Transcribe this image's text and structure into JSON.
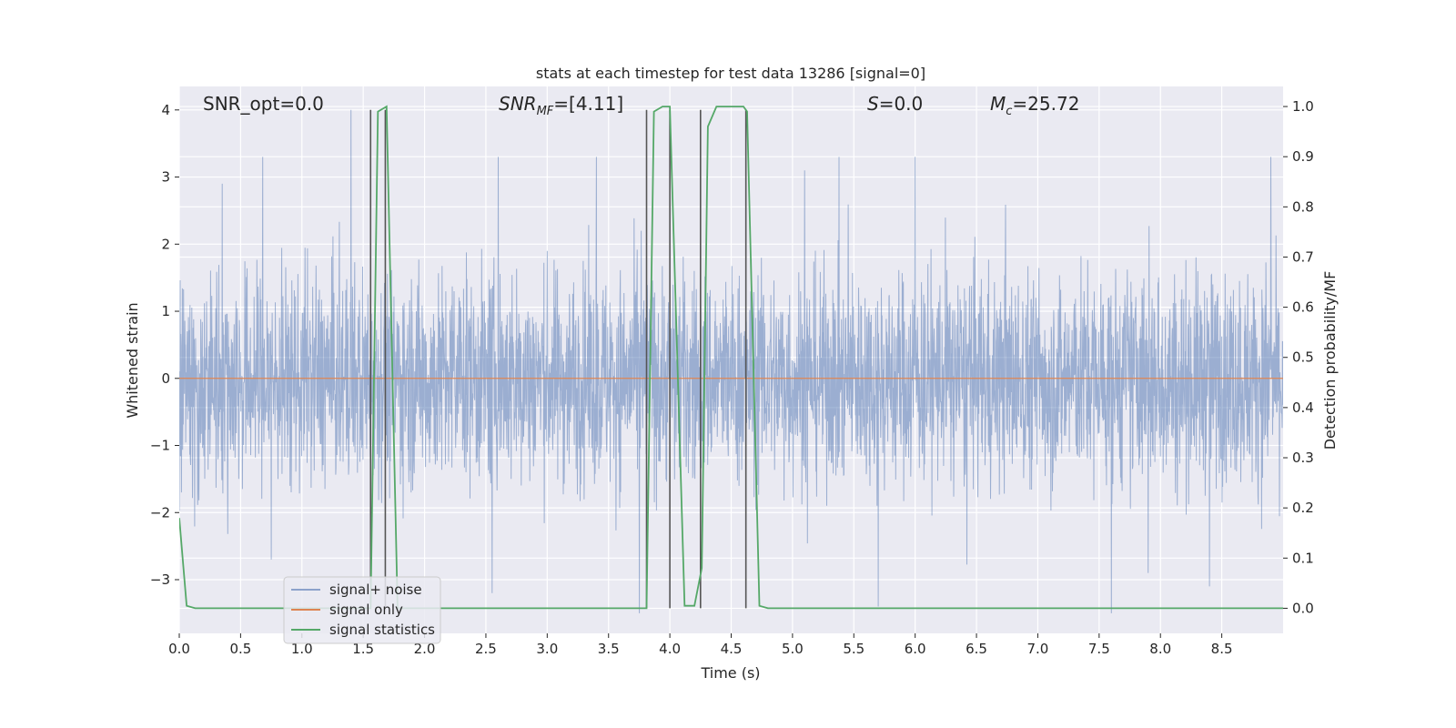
{
  "chart_data": {
    "type": "line",
    "title": "stats at each timestep for test data 13286 [signal=0]",
    "xlabel": "Time (s)",
    "ylabel": "Whitened strain",
    "ylabel_right": "Detection probability/MF",
    "xlim": [
      0,
      9
    ],
    "ylim": [
      -3.8,
      4.35
    ],
    "ylim_right": [
      -0.05,
      1.04
    ],
    "x_ticks": [
      "0.0",
      "0.5",
      "1.0",
      "1.5",
      "2.0",
      "2.5",
      "3.0",
      "3.5",
      "4.0",
      "4.5",
      "5.0",
      "5.5",
      "6.0",
      "6.5",
      "7.0",
      "7.5",
      "8.0",
      "8.5"
    ],
    "y_ticks": [
      "4",
      "3",
      "2",
      "1",
      "0",
      "−1",
      "−2",
      "−3"
    ],
    "y_ticks_right": [
      "1.0",
      "0.9",
      "0.8",
      "0.7",
      "0.6",
      "0.5",
      "0.4",
      "0.3",
      "0.2",
      "0.1",
      "0.0"
    ],
    "grid": true,
    "legend_position": "lower-left",
    "annotations": {
      "snr_opt": "SNR_opt=0.0",
      "snr_mf_main": "SNR",
      "snr_mf_sub": "MF",
      "snr_mf_value": "=[4.11]",
      "s_var": "S",
      "s_value": "=0.0",
      "mc_main": "M",
      "mc_sub": "c",
      "mc_value": "=25.72"
    },
    "series": [
      {
        "name": "signal+ noise",
        "color": "#4c72b0",
        "envelope": "noise amplitude approx ±1.2 whitened strain with peaks to ±4",
        "spikes": [
          [
            0.35,
            2.9
          ],
          [
            0.68,
            3.3
          ],
          [
            1.4,
            4.0
          ],
          [
            2.6,
            3.3
          ],
          [
            3.4,
            3.3
          ],
          [
            5.1,
            3.1
          ],
          [
            6.0,
            3.3
          ],
          [
            7.6,
            3.3
          ],
          [
            8.9,
            3.3
          ],
          [
            0.75,
            -2.7
          ],
          [
            2.55,
            -3.2
          ],
          [
            3.75,
            -3.5
          ],
          [
            5.7,
            -3.4
          ],
          [
            7.6,
            -3.5
          ],
          [
            7.9,
            -2.9
          ],
          [
            8.4,
            -3.1
          ]
        ]
      },
      {
        "name": "signal only",
        "color": "#dd8452",
        "x": [
          0,
          9
        ],
        "y": [
          0,
          0
        ]
      },
      {
        "name": "signal statistics",
        "color": "#55a868",
        "axis": "right",
        "x": [
          0,
          0.06,
          0.13,
          1.56,
          1.62,
          1.69,
          1.78,
          1.81,
          3.81,
          3.87,
          3.94,
          4.0,
          4.12,
          4.2,
          4.26,
          4.31,
          4.38,
          4.6,
          4.63,
          4.73,
          4.8,
          9.0
        ],
        "y": [
          0.18,
          0.005,
          0.0,
          0.0,
          0.99,
          1.0,
          0.0,
          0.0,
          0.0,
          0.99,
          1.0,
          1.0,
          0.005,
          0.005,
          0.08,
          0.96,
          1.0,
          1.0,
          0.99,
          0.005,
          0.0,
          0.0
        ]
      }
    ],
    "vertical_lines": [
      1.56,
      1.68,
      3.81,
      4.0,
      4.25,
      4.62
    ],
    "vertical_line_color": "#555555"
  }
}
